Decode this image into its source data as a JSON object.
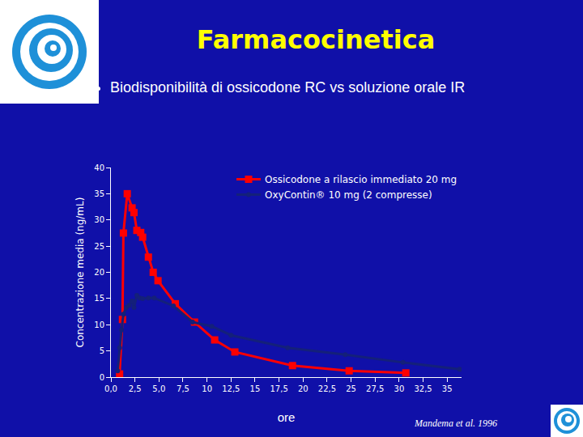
{
  "chart_data": {
    "type": "line",
    "title": "Farmacocinetica",
    "subtitle": "Biodisponibilità di ossicodone RC vs soluzione orale IR",
    "x_label": "ore",
    "y_label": "Concentrazione media (ng/mL)",
    "annotations": [
      "Mandema et al. 1996"
    ],
    "series": [
      {
        "name": "Ossicodone a rilascio immediato 20 mg",
        "color": "#ff0000",
        "marker": "square",
        "line_style": "solid",
        "x": [
          0.9,
          1.2,
          1.3,
          1.7,
          2.2,
          2.4,
          2.7,
          3.1,
          3.3,
          3.9,
          4.4,
          4.9,
          6.7,
          8.7,
          10.8,
          12.9,
          18.9,
          24.8,
          30.7
        ],
        "values": [
          0.6,
          11,
          27.5,
          35,
          32.3,
          31.4,
          28,
          27.6,
          26.7,
          22.9,
          20,
          18.4,
          14,
          10.5,
          7.1,
          4.8,
          2.2,
          1.2,
          0.8
        ]
      },
      {
        "name": "OxyContin® 10 mg (2 compresse)",
        "color": "#14207a",
        "marker": "circle",
        "line_style": "solid",
        "x": [
          0.7,
          0.9,
          1.1,
          1.3,
          1.6,
          1.9,
          2.2,
          2.4,
          2.7,
          3.0,
          3.3,
          3.9,
          4.5,
          6.5,
          8.5,
          10.5,
          12.5,
          18.4,
          24.4,
          30.4,
          36.3
        ],
        "values": [
          1.2,
          5.6,
          9,
          12,
          13.3,
          13.7,
          14.5,
          13.3,
          15.6,
          15.1,
          15,
          15.1,
          15.1,
          13.6,
          10.5,
          9.7,
          8,
          5.6,
          4.3,
          2.8,
          1.5
        ]
      }
    ],
    "xlim": [
      0,
      36.5
    ],
    "xticks": [
      {
        "value": 0,
        "label": "0,0"
      },
      {
        "value": 2.5,
        "label": "2,5"
      },
      {
        "value": 5,
        "label": "5,0"
      },
      {
        "value": 7.5,
        "label": "7,5"
      },
      10,
      {
        "value": 12.5,
        "label": "12,5"
      },
      15,
      {
        "value": 17.5,
        "label": "17,5"
      },
      20,
      {
        "value": 22.5,
        "label": "22,5"
      },
      25,
      {
        "value": 27.5,
        "label": "27,5"
      },
      30,
      {
        "value": 32.5,
        "label": "32,5"
      },
      35
    ],
    "ylim": [
      0,
      40
    ],
    "yticks": [
      0,
      5,
      10,
      15,
      20,
      25,
      30,
      35,
      40
    ],
    "grid": false,
    "legend": "top right"
  }
}
